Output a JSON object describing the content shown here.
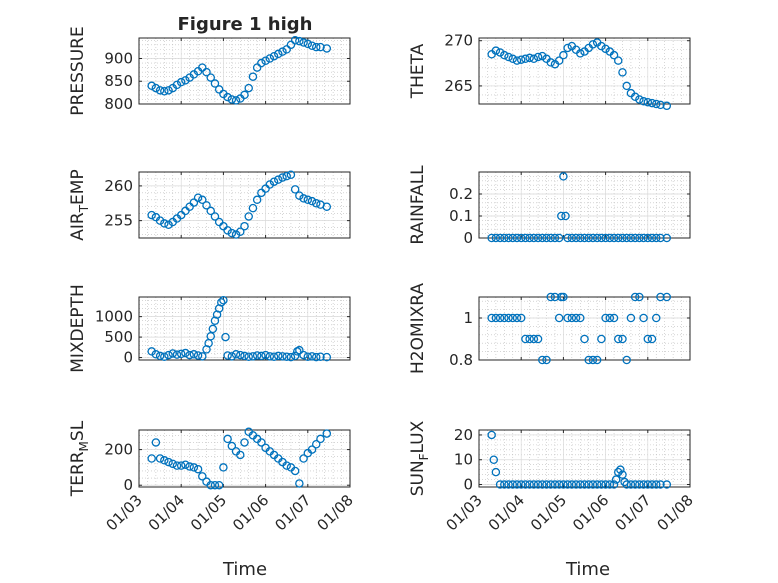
{
  "figure": {
    "title": "Figure 1 high",
    "x_axis_label": "Time",
    "marker_color": "#0072BD",
    "axis_color": "#262626",
    "grid_color": "#bdbdbd"
  },
  "chart_data": [
    {
      "type": "scatter",
      "ylabel": "PRESSURE",
      "title": "Figure 1 high",
      "xlim": [
        3.0,
        8.0
      ],
      "ylim": [
        800,
        945
      ],
      "yticks": [
        800,
        850,
        900
      ],
      "xticks": [
        "01/03",
        "01/04",
        "01/05",
        "01/06",
        "01/07",
        "01/08"
      ],
      "x": [
        3.3,
        3.4,
        3.5,
        3.6,
        3.7,
        3.8,
        3.9,
        4.0,
        4.1,
        4.2,
        4.3,
        4.4,
        4.5,
        4.6,
        4.7,
        4.8,
        4.9,
        5.0,
        5.1,
        5.2,
        5.3,
        5.4,
        5.5,
        5.6,
        5.7,
        5.8,
        5.9,
        6.0,
        6.1,
        6.2,
        6.3,
        6.4,
        6.5,
        6.6,
        6.7,
        6.8,
        6.9,
        7.0,
        7.1,
        7.2,
        7.3,
        7.45
      ],
      "y": [
        840,
        835,
        830,
        828,
        830,
        835,
        842,
        848,
        852,
        858,
        865,
        872,
        880,
        870,
        858,
        845,
        832,
        822,
        815,
        810,
        808,
        812,
        820,
        835,
        860,
        880,
        890,
        895,
        900,
        905,
        910,
        915,
        920,
        930,
        940,
        938,
        935,
        932,
        928,
        925,
        925,
        922
      ]
    },
    {
      "type": "scatter",
      "ylabel": "THETA",
      "xlim": [
        3.0,
        8.0
      ],
      "ylim": [
        263.0,
        270.3
      ],
      "yticks": [
        265,
        270
      ],
      "xticks": [
        "01/03",
        "01/04",
        "01/05",
        "01/06",
        "01/07",
        "01/08"
      ],
      "x": [
        3.3,
        3.4,
        3.5,
        3.6,
        3.7,
        3.8,
        3.9,
        4.0,
        4.1,
        4.2,
        4.3,
        4.4,
        4.5,
        4.6,
        4.7,
        4.8,
        4.9,
        5.0,
        5.1,
        5.2,
        5.3,
        5.4,
        5.5,
        5.6,
        5.7,
        5.8,
        5.9,
        6.0,
        6.1,
        6.2,
        6.3,
        6.4,
        6.5,
        6.6,
        6.7,
        6.8,
        6.9,
        7.0,
        7.1,
        7.2,
        7.3,
        7.45
      ],
      "y": [
        268.5,
        268.9,
        268.7,
        268.4,
        268.2,
        268.0,
        267.8,
        267.9,
        268.0,
        268.1,
        268.0,
        268.2,
        268.3,
        268.0,
        267.6,
        267.4,
        267.8,
        268.4,
        269.2,
        269.4,
        269.0,
        268.6,
        268.8,
        269.2,
        269.6,
        269.8,
        269.4,
        269.1,
        268.8,
        268.4,
        267.8,
        266.5,
        265.0,
        264.2,
        263.8,
        263.5,
        263.3,
        263.2,
        263.1,
        263.0,
        262.9,
        262.8
      ]
    },
    {
      "type": "scatter",
      "ylabel": "AIR",
      "ylabel_sub": "T",
      "ylabel_tail": "EMP",
      "xlim": [
        3.0,
        8.0
      ],
      "ylim": [
        252.5,
        262.0
      ],
      "yticks": [
        255,
        260
      ],
      "xticks": [
        "01/03",
        "01/04",
        "01/05",
        "01/06",
        "01/07",
        "01/08"
      ],
      "x": [
        3.3,
        3.4,
        3.5,
        3.6,
        3.7,
        3.8,
        3.9,
        4.0,
        4.1,
        4.2,
        4.3,
        4.4,
        4.5,
        4.6,
        4.7,
        4.8,
        4.9,
        5.0,
        5.1,
        5.2,
        5.3,
        5.4,
        5.5,
        5.6,
        5.7,
        5.8,
        5.9,
        6.0,
        6.1,
        6.2,
        6.3,
        6.4,
        6.5,
        6.6,
        6.7,
        6.8,
        6.9,
        7.0,
        7.1,
        7.2,
        7.3,
        7.45
      ],
      "y": [
        255.8,
        255.5,
        255.0,
        254.6,
        254.4,
        254.8,
        255.3,
        255.8,
        256.4,
        257.0,
        257.6,
        258.3,
        258.0,
        257.2,
        256.4,
        255.6,
        254.8,
        254.2,
        253.6,
        253.2,
        253.0,
        253.4,
        254.2,
        255.6,
        256.8,
        258.0,
        259.0,
        259.6,
        260.2,
        260.6,
        260.9,
        261.2,
        261.4,
        261.6,
        259.5,
        258.6,
        258.2,
        258.0,
        257.8,
        257.5,
        257.3,
        257.0
      ]
    },
    {
      "type": "scatter",
      "ylabel": "RAINFALL",
      "xlim": [
        3.0,
        8.0
      ],
      "ylim": [
        0,
        0.3
      ],
      "yticks": [
        0,
        0.1,
        0.2
      ],
      "ytick_labels": [
        "0",
        "0.1",
        "0.2"
      ],
      "xticks": [
        "01/03",
        "01/04",
        "01/05",
        "01/06",
        "01/07",
        "01/08"
      ],
      "x": [
        3.3,
        3.4,
        3.5,
        3.6,
        3.7,
        3.8,
        3.9,
        4.0,
        4.1,
        4.2,
        4.3,
        4.4,
        4.5,
        4.6,
        4.7,
        4.8,
        4.9,
        4.95,
        5.0,
        5.05,
        5.1,
        5.2,
        5.3,
        5.4,
        5.5,
        5.6,
        5.7,
        5.8,
        5.9,
        6.0,
        6.1,
        6.2,
        6.3,
        6.4,
        6.5,
        6.6,
        6.7,
        6.8,
        6.9,
        7.0,
        7.1,
        7.2,
        7.3,
        7.45
      ],
      "y": [
        0,
        0,
        0,
        0,
        0,
        0,
        0,
        0,
        0,
        0,
        0,
        0,
        0,
        0,
        0,
        0,
        0,
        0.1,
        0.28,
        0.1,
        0,
        0,
        0,
        0,
        0,
        0,
        0,
        0,
        0,
        0,
        0,
        0,
        0,
        0,
        0,
        0,
        0,
        0,
        0,
        0,
        0,
        0,
        0,
        0
      ]
    },
    {
      "type": "scatter",
      "ylabel": "MIXDEPTH",
      "xlim": [
        3.0,
        8.0
      ],
      "ylim": [
        -60,
        1480
      ],
      "yticks": [
        0,
        500,
        1000
      ],
      "xticks": [
        "01/03",
        "01/04",
        "01/05",
        "01/06",
        "01/07",
        "01/08"
      ],
      "x": [
        3.3,
        3.4,
        3.5,
        3.6,
        3.7,
        3.8,
        3.9,
        4.0,
        4.1,
        4.2,
        4.3,
        4.4,
        4.5,
        4.6,
        4.65,
        4.7,
        4.75,
        4.8,
        4.85,
        4.9,
        4.95,
        5.0,
        5.05,
        5.1,
        5.2,
        5.3,
        5.4,
        5.5,
        5.6,
        5.7,
        5.8,
        5.9,
        6.0,
        6.1,
        6.2,
        6.3,
        6.4,
        6.5,
        6.6,
        6.7,
        6.75,
        6.8,
        6.9,
        7.0,
        7.1,
        7.2,
        7.3,
        7.45
      ],
      "y": [
        150,
        80,
        40,
        20,
        60,
        100,
        70,
        90,
        110,
        60,
        80,
        50,
        30,
        200,
        350,
        520,
        700,
        900,
        1050,
        1200,
        1350,
        1400,
        500,
        50,
        30,
        80,
        60,
        40,
        20,
        30,
        50,
        40,
        60,
        30,
        20,
        40,
        30,
        20,
        10,
        40,
        150,
        180,
        60,
        20,
        30,
        10,
        20,
        10
      ]
    },
    {
      "type": "scatter",
      "ylabel": "H2OMIXRA",
      "xlim": [
        3.0,
        8.0
      ],
      "ylim": [
        0.8,
        1.1
      ],
      "yticks": [
        0.8,
        1
      ],
      "ytick_labels": [
        "0.8",
        "1"
      ],
      "xticks": [
        "01/03",
        "01/04",
        "01/05",
        "01/06",
        "01/07",
        "01/08"
      ],
      "x": [
        3.3,
        3.4,
        3.5,
        3.6,
        3.7,
        3.8,
        3.9,
        4.0,
        4.1,
        4.2,
        4.3,
        4.4,
        4.5,
        4.6,
        4.7,
        4.8,
        4.9,
        4.95,
        5.0,
        5.1,
        5.2,
        5.3,
        5.4,
        5.5,
        5.6,
        5.7,
        5.8,
        5.9,
        6.0,
        6.1,
        6.2,
        6.3,
        6.4,
        6.5,
        6.6,
        6.7,
        6.8,
        6.9,
        7.0,
        7.1,
        7.2,
        7.3,
        7.45
      ],
      "y": [
        1.0,
        1.0,
        1.0,
        1.0,
        1.0,
        1.0,
        1.0,
        1.0,
        0.9,
        0.9,
        0.9,
        0.9,
        0.8,
        0.8,
        1.1,
        1.1,
        1.0,
        1.1,
        1.1,
        1.0,
        1.0,
        1.0,
        1.0,
        0.9,
        0.8,
        0.8,
        0.8,
        0.9,
        1.0,
        1.0,
        1.0,
        0.9,
        0.9,
        0.8,
        1.0,
        1.1,
        1.1,
        1.0,
        0.9,
        0.9,
        1.0,
        1.1,
        1.1
      ]
    },
    {
      "type": "scatter",
      "ylabel": "TERR",
      "ylabel_sub": "M",
      "ylabel_tail": "SL",
      "xlim": [
        3.0,
        8.0
      ],
      "ylim": [
        -10,
        310
      ],
      "yticks": [
        0,
        200
      ],
      "xticks": [
        "01/03",
        "01/04",
        "01/05",
        "01/06",
        "01/07",
        "01/08"
      ],
      "x": [
        3.3,
        3.4,
        3.5,
        3.6,
        3.7,
        3.8,
        3.9,
        4.0,
        4.1,
        4.2,
        4.3,
        4.4,
        4.5,
        4.6,
        4.7,
        4.8,
        4.9,
        5.0,
        5.1,
        5.2,
        5.3,
        5.4,
        5.5,
        5.6,
        5.7,
        5.8,
        5.9,
        6.0,
        6.1,
        6.2,
        6.3,
        6.4,
        6.5,
        6.6,
        6.7,
        6.8,
        6.9,
        7.0,
        7.1,
        7.2,
        7.3,
        7.45
      ],
      "y": [
        150,
        240,
        150,
        140,
        130,
        120,
        110,
        110,
        115,
        105,
        100,
        90,
        50,
        20,
        0,
        0,
        0,
        100,
        260,
        220,
        190,
        170,
        240,
        300,
        280,
        260,
        240,
        210,
        190,
        170,
        150,
        130,
        110,
        100,
        80,
        10,
        150,
        180,
        200,
        230,
        260,
        290
      ]
    },
    {
      "type": "scatter",
      "ylabel": "SUN",
      "ylabel_sub": "F",
      "ylabel_tail": "LUX",
      "xlim": [
        3.0,
        8.0
      ],
      "ylim": [
        -1,
        22
      ],
      "yticks": [
        0,
        10,
        20
      ],
      "xticks": [
        "01/03",
        "01/04",
        "01/05",
        "01/06",
        "01/07",
        "01/08"
      ],
      "x": [
        3.3,
        3.35,
        3.4,
        3.5,
        3.6,
        3.7,
        3.8,
        3.9,
        4.0,
        4.1,
        4.2,
        4.3,
        4.4,
        4.5,
        4.6,
        4.7,
        4.8,
        4.9,
        5.0,
        5.1,
        5.2,
        5.3,
        5.4,
        5.5,
        5.6,
        5.7,
        5.8,
        5.9,
        6.0,
        6.1,
        6.2,
        6.25,
        6.3,
        6.35,
        6.4,
        6.45,
        6.5,
        6.6,
        6.7,
        6.8,
        6.9,
        7.0,
        7.1,
        7.2,
        7.3,
        7.45
      ],
      "y": [
        20,
        10,
        5,
        0,
        0,
        0,
        0,
        0,
        0,
        0,
        0,
        0,
        0,
        0,
        0,
        0,
        0,
        0,
        0,
        0,
        0,
        0,
        0,
        0,
        0,
        0,
        0,
        0,
        0,
        0,
        0,
        2,
        5,
        6,
        4,
        1,
        0,
        0,
        0,
        0,
        0,
        0,
        0,
        0,
        0,
        0
      ]
    }
  ]
}
